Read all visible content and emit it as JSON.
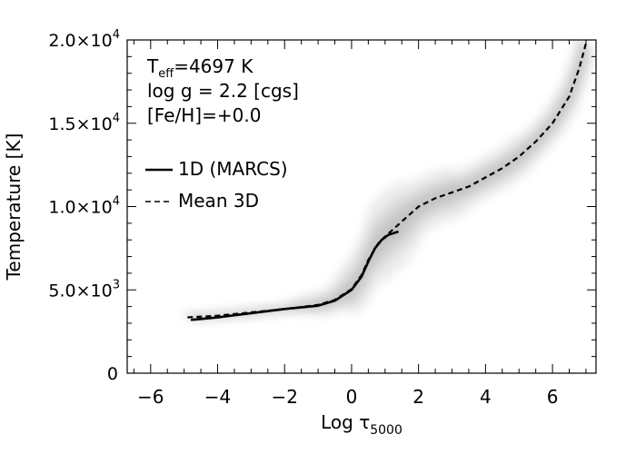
{
  "chart_data": {
    "type": "line",
    "xlabel_main": "Log τ",
    "xlabel_sub": "5000",
    "ylabel": "Temperature [K]",
    "xlim": [
      -6.7,
      7.3
    ],
    "ylim": [
      0,
      20000
    ],
    "x_ticks": [
      {
        "v": -6,
        "label": "−6"
      },
      {
        "v": -4,
        "label": "−4"
      },
      {
        "v": -2,
        "label": "−2"
      },
      {
        "v": 0,
        "label": "0"
      },
      {
        "v": 2,
        "label": "2"
      },
      {
        "v": 4,
        "label": "4"
      },
      {
        "v": 6,
        "label": "6"
      }
    ],
    "y_ticks": [
      {
        "v": 0,
        "mant": "0",
        "exp": ""
      },
      {
        "v": 5000,
        "mant": "5.0×10",
        "exp": "3"
      },
      {
        "v": 10000,
        "mant": "1.0×10",
        "exp": "4"
      },
      {
        "v": 15000,
        "mant": "1.5×10",
        "exp": "4"
      },
      {
        "v": 20000,
        "mant": "2.0×10",
        "exp": "4"
      }
    ],
    "annotations": {
      "teff_main": "T",
      "teff_sub": "eff",
      "teff_value": "=4697 K",
      "logg": "log g = 2.2 [cgs]",
      "feh": "[Fe/H]=+0.0"
    },
    "legend": {
      "position": "left",
      "items": [
        {
          "label": "1D (MARCS)",
          "style": "solid"
        },
        {
          "label": "Mean 3D",
          "style": "dashed"
        }
      ]
    },
    "series": [
      {
        "name": "1D (MARCS)",
        "style": "solid",
        "x": [
          -4.8,
          -4.0,
          -3.0,
          -2.0,
          -1.0,
          -0.5,
          0.0,
          0.3,
          0.5,
          0.7,
          0.9,
          1.1,
          1.4
        ],
        "y": [
          3200,
          3350,
          3600,
          3850,
          4050,
          4350,
          5000,
          5800,
          6700,
          7500,
          8000,
          8300,
          8500
        ]
      },
      {
        "name": "Mean 3D",
        "style": "dashed",
        "x": [
          -4.9,
          -4.0,
          -3.0,
          -2.0,
          -1.0,
          -0.5,
          0.0,
          0.3,
          0.5,
          0.8,
          1.0,
          1.5,
          2.0,
          2.5,
          3.0,
          3.5,
          4.0,
          4.5,
          5.0,
          5.5,
          6.0,
          6.5,
          6.8,
          7.0
        ],
        "y": [
          3350,
          3450,
          3650,
          3850,
          4100,
          4400,
          5050,
          5900,
          6800,
          7800,
          8200,
          9100,
          10000,
          10500,
          10850,
          11200,
          11750,
          12300,
          13000,
          13900,
          15000,
          16600,
          18300,
          19800
        ]
      }
    ]
  }
}
